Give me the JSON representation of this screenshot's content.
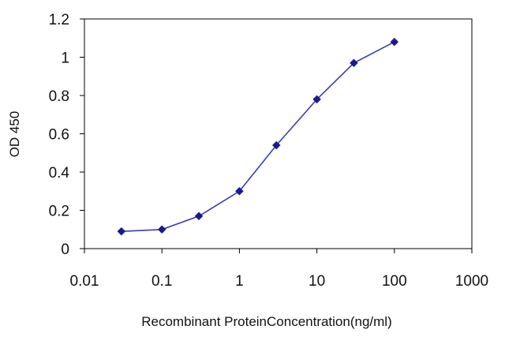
{
  "chart_data": {
    "type": "line",
    "xlabel": "Recombinant ProteinConcentration(ng/ml)",
    "ylabel": "OD 450",
    "xscale": "log",
    "xlim": [
      0.01,
      1000
    ],
    "ylim": [
      0,
      1.2
    ],
    "x_ticks": [
      "0.01",
      "0.1",
      "1",
      "10",
      "100",
      "1000"
    ],
    "y_ticks": [
      "0",
      "0.2",
      "0.4",
      "0.6",
      "0.8",
      "1",
      "1.2"
    ],
    "grid": false,
    "legend": "none",
    "colors": {
      "line": "#3a3cb8",
      "marker": "#1a1a8c"
    },
    "series": [
      {
        "x": [
          0.03,
          0.1,
          0.3,
          1,
          3,
          10,
          30,
          100
        ],
        "y": [
          0.09,
          0.1,
          0.17,
          0.3,
          0.54,
          0.78,
          0.97,
          1.08
        ]
      }
    ]
  }
}
